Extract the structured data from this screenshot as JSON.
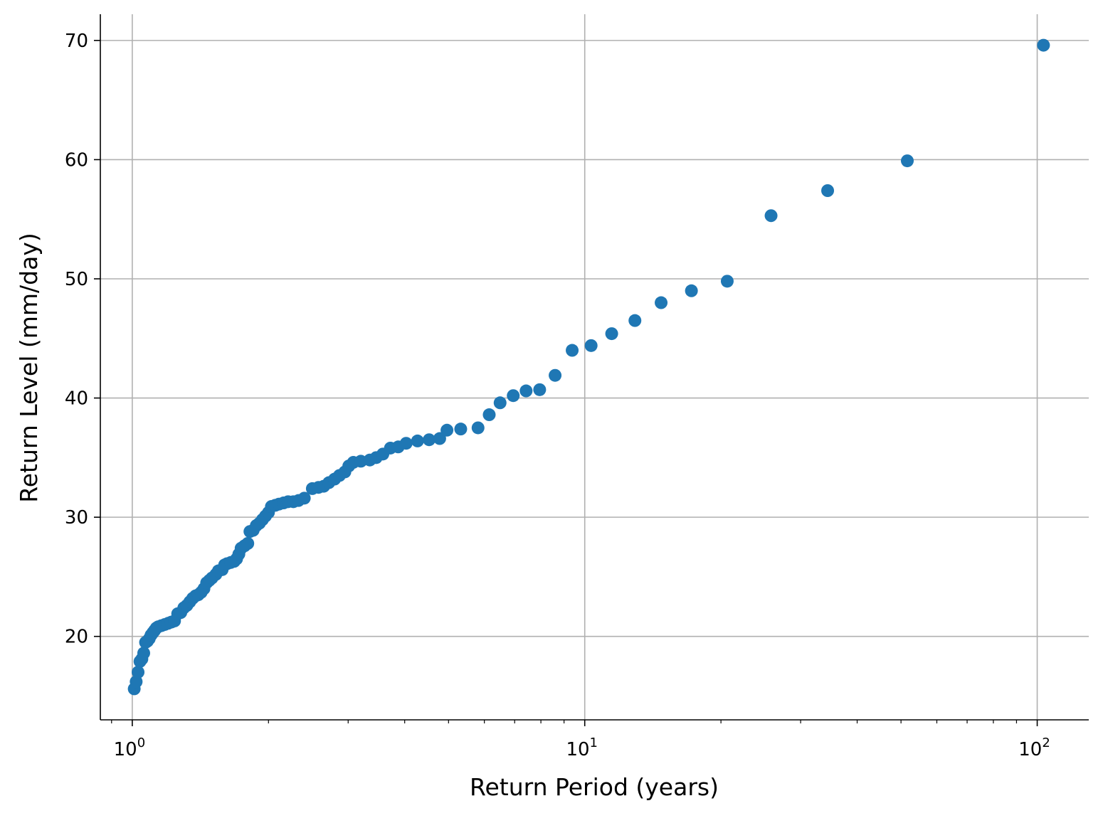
{
  "chart_data": {
    "type": "scatter",
    "title": "",
    "xlabel": "Return Period (years)",
    "ylabel": "Return Level (mm/day)",
    "x_scale": "log",
    "xlim": [
      0.85,
      130
    ],
    "ylim": [
      13,
      72.2
    ],
    "x_ticks": [
      {
        "value": 1,
        "base": "10",
        "exp": "0"
      },
      {
        "value": 10,
        "base": "10",
        "exp": "1"
      },
      {
        "value": 100,
        "base": "10",
        "exp": "2"
      }
    ],
    "y_ticks": [
      {
        "value": 20,
        "label": "20"
      },
      {
        "value": 30,
        "label": "30"
      },
      {
        "value": 40,
        "label": "40"
      },
      {
        "value": 50,
        "label": "50"
      },
      {
        "value": 60,
        "label": "60"
      },
      {
        "value": 70,
        "label": "70"
      }
    ],
    "grid": true,
    "marker_color": "#1f77b4",
    "series": [
      {
        "points": [
          [
            1.01,
            15.6
          ],
          [
            1.02,
            16.2
          ],
          [
            1.03,
            17.0
          ],
          [
            1.04,
            17.9
          ],
          [
            1.05,
            18.1
          ],
          [
            1.06,
            18.6
          ],
          [
            1.07,
            19.5
          ],
          [
            1.08,
            19.6
          ],
          [
            1.09,
            19.8
          ],
          [
            1.1,
            20.1
          ],
          [
            1.11,
            20.3
          ],
          [
            1.12,
            20.5
          ],
          [
            1.13,
            20.7
          ],
          [
            1.14,
            20.8
          ],
          [
            1.16,
            20.9
          ],
          [
            1.18,
            21.0
          ],
          [
            1.2,
            21.1
          ],
          [
            1.22,
            21.2
          ],
          [
            1.24,
            21.3
          ],
          [
            1.26,
            21.9
          ],
          [
            1.28,
            22.0
          ],
          [
            1.3,
            22.4
          ],
          [
            1.32,
            22.6
          ],
          [
            1.34,
            22.9
          ],
          [
            1.36,
            23.2
          ],
          [
            1.38,
            23.4
          ],
          [
            1.4,
            23.5
          ],
          [
            1.42,
            23.7
          ],
          [
            1.44,
            24.0
          ],
          [
            1.46,
            24.5
          ],
          [
            1.48,
            24.7
          ],
          [
            1.5,
            24.9
          ],
          [
            1.53,
            25.2
          ],
          [
            1.55,
            25.5
          ],
          [
            1.58,
            25.6
          ],
          [
            1.6,
            26.0
          ],
          [
            1.62,
            26.1
          ],
          [
            1.65,
            26.2
          ],
          [
            1.68,
            26.3
          ],
          [
            1.7,
            26.5
          ],
          [
            1.72,
            26.9
          ],
          [
            1.74,
            27.4
          ],
          [
            1.77,
            27.6
          ],
          [
            1.8,
            27.8
          ],
          [
            1.82,
            28.8
          ],
          [
            1.85,
            28.9
          ],
          [
            1.88,
            29.3
          ],
          [
            1.91,
            29.5
          ],
          [
            1.94,
            29.8
          ],
          [
            1.97,
            30.1
          ],
          [
            2.0,
            30.4
          ],
          [
            2.03,
            30.9
          ],
          [
            2.07,
            31.0
          ],
          [
            2.11,
            31.1
          ],
          [
            2.16,
            31.2
          ],
          [
            2.21,
            31.3
          ],
          [
            2.27,
            31.3
          ],
          [
            2.33,
            31.4
          ],
          [
            2.4,
            31.6
          ],
          [
            2.5,
            32.4
          ],
          [
            2.58,
            32.5
          ],
          [
            2.65,
            32.6
          ],
          [
            2.72,
            32.9
          ],
          [
            2.8,
            33.2
          ],
          [
            2.87,
            33.5
          ],
          [
            2.95,
            33.8
          ],
          [
            3.01,
            34.3
          ],
          [
            3.08,
            34.6
          ],
          [
            3.2,
            34.7
          ],
          [
            3.35,
            34.8
          ],
          [
            3.46,
            35.0
          ],
          [
            3.58,
            35.3
          ],
          [
            3.72,
            35.8
          ],
          [
            3.87,
            35.9
          ],
          [
            4.03,
            36.2
          ],
          [
            4.27,
            36.4
          ],
          [
            4.53,
            36.5
          ],
          [
            4.78,
            36.6
          ],
          [
            4.96,
            37.3
          ],
          [
            5.32,
            37.4
          ],
          [
            5.81,
            37.5
          ],
          [
            6.15,
            38.6
          ],
          [
            6.5,
            39.6
          ],
          [
            6.95,
            40.2
          ],
          [
            7.42,
            40.6
          ],
          [
            7.95,
            40.7
          ],
          [
            8.6,
            41.9
          ],
          [
            9.38,
            44.0
          ],
          [
            10.33,
            44.4
          ],
          [
            11.47,
            45.4
          ],
          [
            12.91,
            46.5
          ],
          [
            14.75,
            48.0
          ],
          [
            17.21,
            49.0
          ],
          [
            20.65,
            49.8
          ],
          [
            25.81,
            55.3
          ],
          [
            34.42,
            57.4
          ],
          [
            51.63,
            59.9
          ],
          [
            103.25,
            69.6
          ]
        ]
      }
    ]
  }
}
